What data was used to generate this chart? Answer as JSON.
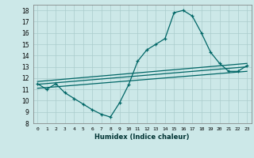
{
  "xlabel": "Humidex (Indice chaleur)",
  "ylabel": "",
  "bg_color": "#cce8e8",
  "grid_color": "#aacccc",
  "line_color": "#006666",
  "xlim": [
    -0.5,
    23.5
  ],
  "ylim": [
    8.0,
    18.5
  ],
  "yticks": [
    8,
    9,
    10,
    11,
    12,
    13,
    14,
    15,
    16,
    17,
    18
  ],
  "xticks": [
    0,
    1,
    2,
    3,
    4,
    5,
    6,
    7,
    8,
    9,
    10,
    11,
    12,
    13,
    14,
    15,
    16,
    17,
    18,
    19,
    20,
    21,
    22,
    23
  ],
  "main_x": [
    0,
    1,
    2,
    3,
    4,
    5,
    6,
    7,
    8,
    9,
    10,
    11,
    12,
    13,
    14,
    15,
    16,
    17,
    18,
    19,
    20,
    21,
    22,
    23
  ],
  "main_y": [
    11.5,
    11.0,
    11.5,
    10.7,
    10.2,
    9.7,
    9.2,
    8.8,
    8.55,
    9.8,
    11.4,
    13.5,
    14.5,
    15.0,
    15.5,
    17.8,
    18.0,
    17.5,
    16.0,
    14.3,
    13.3,
    12.6,
    12.6,
    13.1
  ],
  "line1_x": [
    0,
    23
  ],
  "line1_y": [
    11.7,
    13.3
  ],
  "line2_x": [
    0,
    23
  ],
  "line2_y": [
    11.45,
    13.0
  ],
  "line3_x": [
    0,
    23
  ],
  "line3_y": [
    11.1,
    12.6
  ]
}
